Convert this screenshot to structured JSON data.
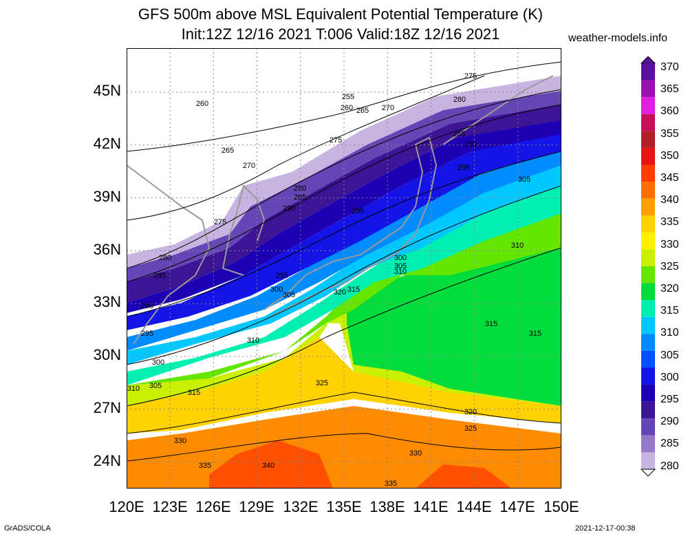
{
  "title": {
    "line1": "GFS 500m above MSL Equivalent Potential Temperature (K)",
    "line2": "Init:12Z 12/16 2021 T:006 Valid:18Z 12/16 2021",
    "site": "weather-models.info"
  },
  "map": {
    "lon_range": [
      120,
      150
    ],
    "lat_range": [
      22.5,
      47.5
    ],
    "x_ticks": [
      "120E",
      "123E",
      "126E",
      "129E",
      "132E",
      "135E",
      "138E",
      "141E",
      "144E",
      "147E",
      "150E"
    ],
    "y_ticks": [
      "24N",
      "27N",
      "30N",
      "33N",
      "36N",
      "39N",
      "42N",
      "45N"
    ],
    "grid": "dotted"
  },
  "colorbar": {
    "labels": [
      "370",
      "365",
      "360",
      "355",
      "350",
      "345",
      "340",
      "335",
      "330",
      "325",
      "320",
      "315",
      "310",
      "305",
      "300",
      "295",
      "290",
      "285",
      "280"
    ],
    "colors": [
      "#5a0f9e",
      "#9b0fb4",
      "#e020e0",
      "#c8105a",
      "#b41e28",
      "#e61414",
      "#ff3c00",
      "#ff6e00",
      "#ffa000",
      "#ffd200",
      "#fff000",
      "#c8f000",
      "#64e600",
      "#00dc3c",
      "#00f0b4",
      "#00c8ff",
      "#008cff",
      "#0050ff",
      "#1414e6",
      "#1e00b4",
      "#3c1496",
      "#6446b4",
      "#9678c8",
      "#c8b4e1"
    ]
  },
  "contour_labels": [
    "275",
    "280",
    "260",
    "255",
    "260",
    "265",
    "270",
    "285",
    "290",
    "275",
    "265",
    "270",
    "295",
    "280",
    "285",
    "305",
    "290",
    "295",
    "275",
    "310",
    "280",
    "285",
    "300",
    "295",
    "305",
    "310",
    "300",
    "305",
    "320",
    "315",
    "290",
    "315",
    "315",
    "295",
    "310",
    "300",
    "305",
    "310",
    "315",
    "325",
    "320",
    "325",
    "330",
    "330",
    "335",
    "340",
    "335"
  ],
  "footer": {
    "left": "GrADS/COLA",
    "right": "2021-12-17-00:38"
  }
}
